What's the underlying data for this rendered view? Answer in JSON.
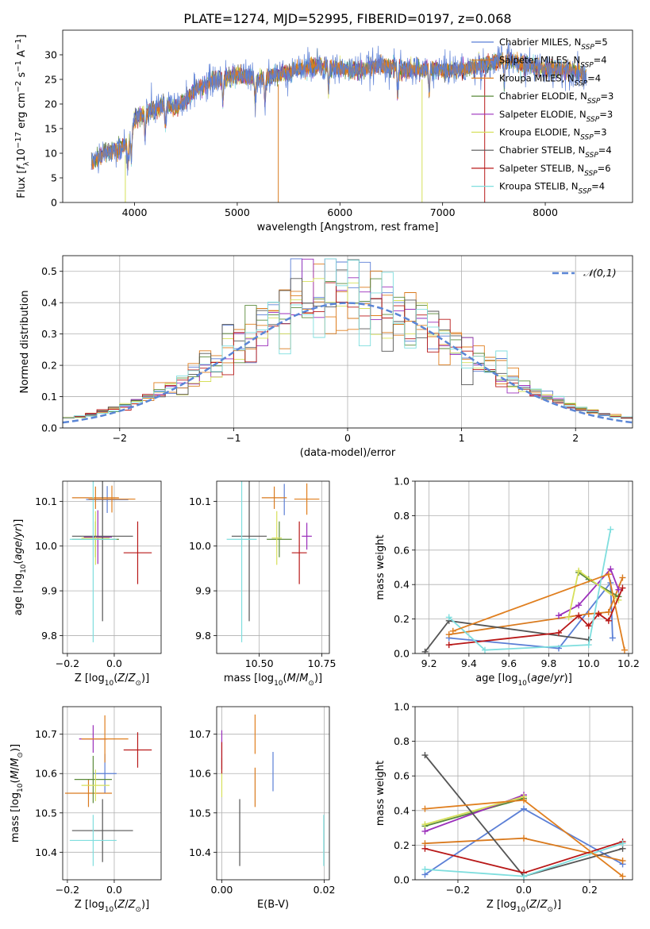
{
  "figure_title": "PLATE=1274, MJD=52995, FIBERID=0197, z=0.068",
  "colors": {
    "Chabrier MILES": "#5b7fd6",
    "Salpeter MILES": "#d97a1e",
    "Kroupa MILES": "#e07f1f",
    "Chabrier ELODIE": "#5a8a3a",
    "Salpeter ELODIE": "#9b2fbb",
    "Kroupa ELODIE": "#d6e05a",
    "Chabrier STELIB": "#555555",
    "Salpeter STELIB": "#b81818",
    "Kroupa STELIB": "#7fdede"
  },
  "chart_data": [
    {
      "id": "spectrum",
      "type": "line",
      "title": "PLATE=1274, MJD=52995, FIBERID=0197, z=0.068",
      "xlabel": "wavelength [Angstrom, rest frame]",
      "ylabel": "Flux [f_λ 10^-17 erg cm^-2 s^-1 A^-1]",
      "xlim": [
        3300,
        8850
      ],
      "ylim": [
        0,
        35
      ],
      "xticks": [
        4000,
        5000,
        6000,
        7000,
        8000
      ],
      "yticks": [
        0,
        5,
        10,
        15,
        20,
        25,
        30
      ],
      "grid": false,
      "legend_position": "top-right",
      "legend": [
        {
          "name": "Chabrier MILES",
          "nssp": "5"
        },
        {
          "name": "Salpeter MILES",
          "nssp": "4"
        },
        {
          "name": "Kroupa MILES",
          "nssp": "4"
        },
        {
          "name": "Chabrier ELODIE",
          "nssp": "3"
        },
        {
          "name": "Salpeter ELODIE",
          "nssp": "3"
        },
        {
          "name": "Kroupa ELODIE",
          "nssp": "3"
        },
        {
          "name": "Chabrier STELIB",
          "nssp": "4"
        },
        {
          "name": "Salpeter STELIB",
          "nssp": "6"
        },
        {
          "name": "Kroupa STELIB",
          "nssp": "4"
        }
      ],
      "continuum_approx": {
        "x": [
          3580,
          3700,
          3850,
          3950,
          4000,
          4100,
          4300,
          4400,
          4600,
          4800,
          5000,
          5200,
          5400,
          5600,
          5800,
          6000,
          6200,
          6400,
          6600,
          6800,
          7000,
          7200,
          7400,
          7600,
          7800,
          8000,
          8200,
          8400
        ],
        "y": [
          8,
          10,
          11,
          12,
          17,
          18,
          20,
          19,
          23,
          25,
          26,
          25,
          26,
          27,
          28,
          27,
          27,
          28,
          27,
          27,
          27,
          27,
          28,
          29,
          28,
          27,
          27,
          26
        ]
      },
      "dropouts": [
        {
          "x": 3910,
          "model": "Kroupa ELODIE"
        },
        {
          "x": 6800,
          "model": "Kroupa ELODIE"
        },
        {
          "x": 7410,
          "model": "Salpeter STELIB"
        },
        {
          "x": 5400,
          "model": "Salpeter MILES"
        }
      ]
    },
    {
      "id": "residuals",
      "type": "line",
      "xlabel": "(data-model)/error",
      "ylabel": "Normed distribution",
      "xlim": [
        -2.5,
        2.5
      ],
      "ylim": [
        0,
        0.55
      ],
      "xticks": [
        -2,
        -1,
        0,
        1,
        2
      ],
      "yticks": [
        0.0,
        0.1,
        0.2,
        0.3,
        0.4,
        0.5
      ],
      "grid": true,
      "legend_position": "top-right",
      "legend": [
        "𝒩(0,1)"
      ],
      "bin_width": 0.1,
      "gaussian": {
        "mean": 0,
        "sigma": 1,
        "color": "#5b86d6"
      }
    },
    {
      "id": "age_vs_Z",
      "type": "scatter",
      "xlabel": "Z [log10(Z/Z⊙)]",
      "ylabel": "age  [log10(age/yr)]",
      "xlim": [
        -0.22,
        0.2
      ],
      "ylim": [
        9.76,
        10.145
      ],
      "xticks": [
        -0.2,
        0.0
      ],
      "yticks": [
        9.8,
        9.9,
        10.0,
        10.1
      ],
      "grid": true,
      "points": [
        {
          "model": "Chabrier MILES",
          "x": -0.03,
          "y": 10.104,
          "xerr": 0.09,
          "yerr": 0.03
        },
        {
          "model": "Salpeter MILES",
          "x": -0.08,
          "y": 10.108,
          "xerr": 0.1,
          "yerr": 0.025
        },
        {
          "model": "Chabrier ELODIE",
          "x": -0.08,
          "y": 10.015,
          "xerr": 0.1,
          "yerr": 0.04
        },
        {
          "model": "Salpeter ELODIE",
          "x": -0.07,
          "y": 10.02,
          "xerr": 0.06,
          "yerr": 0.06
        },
        {
          "model": "Kroupa ELODIE",
          "x": -0.08,
          "y": 10.018,
          "xerr": 0.06,
          "yerr": 0.06
        },
        {
          "model": "Chabrier STELIB",
          "x": -0.05,
          "y": 10.022,
          "xerr": 0.13,
          "yerr": 0.19
        },
        {
          "model": "Salpeter STELIB",
          "x": 0.1,
          "y": 9.985,
          "xerr": 0.06,
          "yerr": 0.07
        },
        {
          "model": "Kroupa STELIB",
          "x": -0.09,
          "y": 10.015,
          "xerr": 0.1,
          "yerr": 0.23
        },
        {
          "model": "Kroupa MILES",
          "x": -0.01,
          "y": 10.105,
          "xerr": 0.1,
          "yerr": 0.03
        }
      ]
    },
    {
      "id": "age_vs_mass",
      "type": "scatter",
      "xlabel": "mass [log10(M/M⊙)]",
      "ylabel": "",
      "xlim": [
        10.33,
        10.78
      ],
      "ylim": [
        9.76,
        10.145
      ],
      "xticks": [
        10.5,
        10.75
      ],
      "xticklabels": [
        "10.50",
        "10.75"
      ],
      "yticks": [
        9.8,
        9.9,
        10.0,
        10.1
      ],
      "grid": true,
      "points": [
        {
          "model": "Chabrier MILES",
          "x": 10.6,
          "y": 10.104,
          "xerr": 0.0,
          "yerr": 0.035
        },
        {
          "model": "Salpeter MILES",
          "x": 10.56,
          "y": 10.108,
          "xerr": 0.05,
          "yerr": 0.025
        },
        {
          "model": "Chabrier ELODIE",
          "x": 10.58,
          "y": 10.015,
          "xerr": 0.05,
          "yerr": 0.04
        },
        {
          "model": "Salpeter ELODIE",
          "x": 10.69,
          "y": 10.022,
          "xerr": 0.02,
          "yerr": 0.03
        },
        {
          "model": "Kroupa ELODIE",
          "x": 10.57,
          "y": 10.018,
          "xerr": 0.02,
          "yerr": 0.06
        },
        {
          "model": "Chabrier STELIB",
          "x": 10.46,
          "y": 10.022,
          "xerr": 0.07,
          "yerr": 0.19
        },
        {
          "model": "Salpeter STELIB",
          "x": 10.66,
          "y": 9.985,
          "xerr": 0.03,
          "yerr": 0.07
        },
        {
          "model": "Kroupa STELIB",
          "x": 10.43,
          "y": 10.015,
          "xerr": 0.06,
          "yerr": 0.23
        },
        {
          "model": "Kroupa MILES",
          "x": 10.69,
          "y": 10.105,
          "xerr": 0.05,
          "yerr": 0.035
        }
      ]
    },
    {
      "id": "mass_weight_vs_age",
      "type": "line",
      "xlabel": "age  [log10(age/yr)]",
      "ylabel": "mass weight",
      "xlim": [
        9.13,
        10.22
      ],
      "ylim": [
        0,
        1.0
      ],
      "xticks": [
        9.2,
        9.4,
        9.6,
        9.8,
        10.0,
        10.2
      ],
      "yticks": [
        0.0,
        0.2,
        0.4,
        0.6,
        0.8,
        1.0
      ],
      "grid": true,
      "series": [
        {
          "model": "Chabrier MILES",
          "x": [
            9.3,
            9.85,
            10.11,
            10.12
          ],
          "y": [
            0.09,
            0.03,
            0.41,
            0.09
          ]
        },
        {
          "model": "Salpeter MILES",
          "x": [
            9.3,
            10.0,
            10.1,
            10.17
          ],
          "y": [
            0.11,
            0.23,
            0.24,
            0.44
          ]
        },
        {
          "model": "Chabrier ELODIE",
          "x": [
            9.95,
            10.0,
            10.15
          ],
          "y": [
            0.47,
            0.43,
            0.33
          ]
        },
        {
          "model": "Salpeter ELODIE",
          "x": [
            9.85,
            9.95,
            10.11,
            10.15
          ],
          "y": [
            0.22,
            0.28,
            0.49,
            0.37
          ]
        },
        {
          "model": "Kroupa ELODIE",
          "x": [
            9.9,
            9.95,
            10.15
          ],
          "y": [
            0.21,
            0.48,
            0.31
          ]
        },
        {
          "model": "Chabrier STELIB",
          "x": [
            9.18,
            9.3,
            10.0
          ],
          "y": [
            0.01,
            0.19,
            0.08
          ]
        },
        {
          "model": "Salpeter STELIB",
          "x": [
            9.3,
            9.85,
            9.95,
            10.0,
            10.05,
            10.1,
            10.17
          ],
          "y": [
            0.05,
            0.12,
            0.22,
            0.16,
            0.23,
            0.19,
            0.38
          ]
        },
        {
          "model": "Kroupa STELIB",
          "x": [
            9.3,
            9.48,
            10.0,
            10.11
          ],
          "y": [
            0.21,
            0.02,
            0.05,
            0.72
          ]
        },
        {
          "model": "Kroupa MILES",
          "x": [
            9.32,
            10.1,
            10.18
          ],
          "y": [
            0.13,
            0.46,
            0.02
          ]
        }
      ]
    },
    {
      "id": "mass_vs_Z",
      "type": "scatter",
      "xlabel": "Z [log10(Z/Z⊙)]",
      "ylabel": "mass [log10(M/M⊙)]",
      "xlim": [
        -0.22,
        0.2
      ],
      "ylim": [
        10.33,
        10.77
      ],
      "xticks": [
        -0.2,
        0.0
      ],
      "yticks": [
        10.4,
        10.5,
        10.6,
        10.7
      ],
      "grid": true,
      "points": [
        {
          "model": "Chabrier MILES",
          "x": -0.04,
          "y": 10.6,
          "xerr": 0.05,
          "yerr": 0.05
        },
        {
          "model": "Salpeter MILES",
          "x": -0.11,
          "y": 10.55,
          "xerr": 0.1,
          "yerr": 0.035
        },
        {
          "model": "Chabrier ELODIE",
          "x": -0.09,
          "y": 10.585,
          "xerr": 0.08,
          "yerr": 0.06
        },
        {
          "model": "Salpeter ELODIE",
          "x": -0.09,
          "y": 10.688,
          "xerr": 0.06,
          "yerr": 0.035
        },
        {
          "model": "Kroupa ELODIE",
          "x": -0.08,
          "y": 10.57,
          "xerr": 0.06,
          "yerr": 0.04
        },
        {
          "model": "Chabrier STELIB",
          "x": -0.05,
          "y": 10.455,
          "xerr": 0.13,
          "yerr": 0.08
        },
        {
          "model": "Salpeter STELIB",
          "x": 0.1,
          "y": 10.66,
          "xerr": 0.06,
          "yerr": 0.045
        },
        {
          "model": "Kroupa STELIB",
          "x": -0.09,
          "y": 10.43,
          "xerr": 0.1,
          "yerr": 0.065
        },
        {
          "model": "Kroupa MILES",
          "x": -0.04,
          "y": 10.688,
          "xerr": 0.1,
          "yerr": 0.06
        }
      ]
    },
    {
      "id": "mass_vs_EBV",
      "type": "scatter",
      "xlabel": "E(B-V)",
      "ylabel": "",
      "xlim": [
        -0.001,
        0.021
      ],
      "ylim": [
        10.33,
        10.77
      ],
      "xticks": [
        0.0,
        0.02
      ],
      "xticklabels": [
        "0.00",
        "0.02"
      ],
      "yticks": [
        10.4,
        10.5,
        10.6,
        10.7
      ],
      "grid": true,
      "points": [
        {
          "model": "Chabrier MILES",
          "x": 0.01,
          "y": 10.605,
          "yerr": 0.05
        },
        {
          "model": "Salpeter MILES",
          "x": 0.0065,
          "y": 10.565,
          "yerr": 0.05
        },
        {
          "model": "Kroupa ELODIE",
          "x": 0.0,
          "y": 10.59,
          "yerr": 0.05
        },
        {
          "model": "Salpeter ELODIE",
          "x": 0.0,
          "y": 10.66,
          "yerr": 0.05
        },
        {
          "model": "Chabrier STELIB",
          "x": 0.0035,
          "y": 10.45,
          "yerr": 0.085
        },
        {
          "model": "Salpeter STELIB",
          "x": 0.0,
          "y": 10.64,
          "yerr": 0.04
        },
        {
          "model": "Kroupa STELIB",
          "x": 0.0199,
          "y": 10.43,
          "yerr": 0.065
        },
        {
          "model": "Kroupa MILES",
          "x": 0.0065,
          "y": 10.7,
          "yerr": 0.05
        }
      ]
    },
    {
      "id": "mass_weight_vs_Z",
      "type": "line",
      "xlabel": "Z [log10(Z/Z⊙)]",
      "ylabel": "mass weight",
      "xlim": [
        -0.33,
        0.33
      ],
      "ylim": [
        0,
        1.0
      ],
      "xticks": [
        -0.2,
        0.0,
        0.2
      ],
      "yticks": [
        0.0,
        0.2,
        0.4,
        0.6,
        0.8,
        1.0
      ],
      "grid": true,
      "series": [
        {
          "model": "Chabrier MILES",
          "x": [
            -0.3,
            0.0,
            0.3
          ],
          "y": [
            0.03,
            0.41,
            0.09
          ]
        },
        {
          "model": "Salpeter MILES",
          "x": [
            -0.3,
            0.0,
            0.3
          ],
          "y": [
            0.21,
            0.24,
            0.11
          ]
        },
        {
          "model": "Chabrier ELODIE",
          "x": [
            -0.3,
            0.0
          ],
          "y": [
            0.31,
            0.47
          ]
        },
        {
          "model": "Salpeter ELODIE",
          "x": [
            -0.3,
            0.0
          ],
          "y": [
            0.28,
            0.49
          ]
        },
        {
          "model": "Kroupa ELODIE",
          "x": [
            -0.3,
            0.0
          ],
          "y": [
            0.32,
            0.48
          ]
        },
        {
          "model": "Chabrier STELIB",
          "x": [
            -0.3,
            0.0,
            0.3
          ],
          "y": [
            0.72,
            0.02,
            0.18
          ]
        },
        {
          "model": "Salpeter STELIB",
          "x": [
            -0.3,
            0.0,
            0.3
          ],
          "y": [
            0.18,
            0.04,
            0.22
          ]
        },
        {
          "model": "Kroupa STELIB",
          "x": [
            -0.3,
            0.0,
            0.3
          ],
          "y": [
            0.06,
            0.02,
            0.21
          ]
        },
        {
          "model": "Kroupa MILES",
          "x": [
            -0.3,
            0.0,
            0.3
          ],
          "y": [
            0.41,
            0.46,
            0.02
          ]
        }
      ]
    }
  ]
}
